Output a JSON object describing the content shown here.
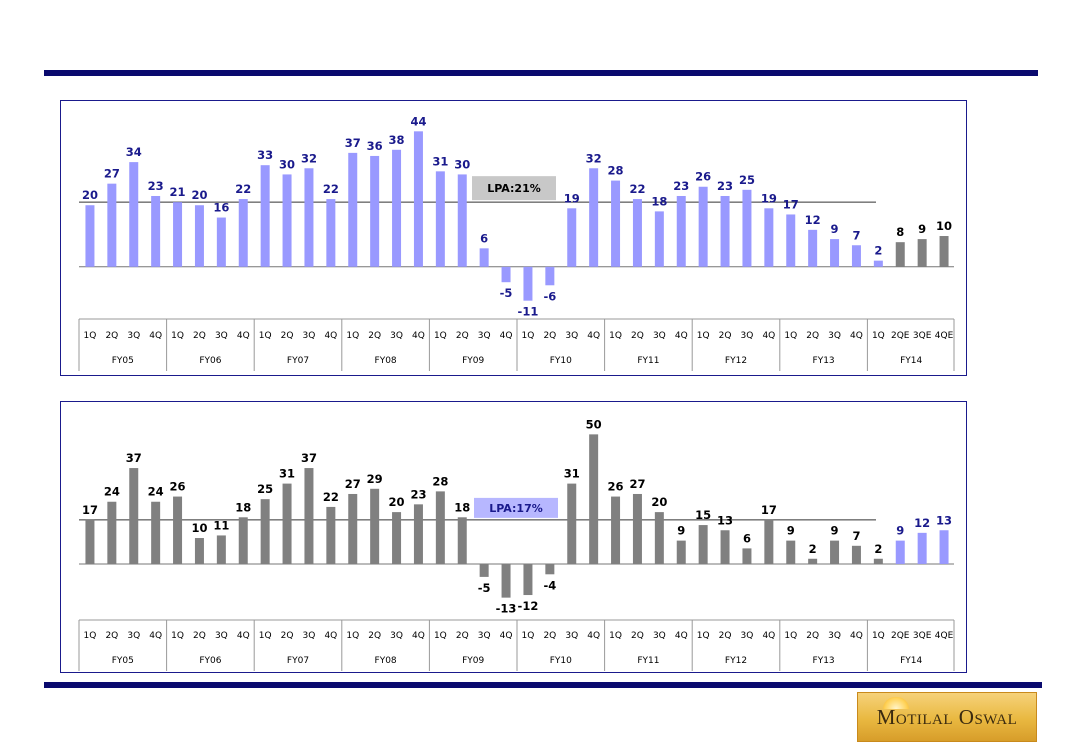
{
  "colors": {
    "rule": "#0a0a6e",
    "border": "#1a1a8c",
    "purple_bar": "#9999ff",
    "grey_bar": "#808080",
    "purple_text": "#1a1a8c",
    "black_text": "#000000",
    "lpa_grey_bg": "#c8c8c8",
    "lpa_purple_bg": "#b7b7ff"
  },
  "logo": {
    "text": "Motilal Oswal",
    "icon": "rising-sun-icon"
  },
  "chart_data": [
    {
      "type": "bar",
      "title": "",
      "xlabel": "",
      "ylabel": "",
      "categories": [
        "1Q",
        "2Q",
        "3Q",
        "4Q",
        "1Q",
        "2Q",
        "3Q",
        "4Q",
        "1Q",
        "2Q",
        "3Q",
        "4Q",
        "1Q",
        "2Q",
        "3Q",
        "4Q",
        "1Q",
        "2Q",
        "3Q",
        "4Q",
        "1Q",
        "2Q",
        "3Q",
        "4Q",
        "1Q",
        "2Q",
        "3Q",
        "4Q",
        "1Q",
        "2Q",
        "3Q",
        "4Q",
        "1Q",
        "2Q",
        "3Q",
        "4Q",
        "1Q",
        "2QE",
        "3QE",
        "4QE"
      ],
      "groups": [
        "FY05",
        "FY06",
        "FY07",
        "FY08",
        "FY09",
        "FY10",
        "FY11",
        "FY12",
        "FY13",
        "FY14"
      ],
      "values": [
        20,
        27,
        34,
        23,
        21,
        20,
        16,
        22,
        33,
        30,
        32,
        22,
        37,
        36,
        38,
        44,
        31,
        30,
        6,
        -5,
        -11,
        -6,
        19,
        32,
        28,
        22,
        18,
        23,
        26,
        23,
        25,
        19,
        17,
        12,
        9,
        7,
        2,
        8,
        9,
        10
      ],
      "highlight_from_index": 37,
      "base_color": "#9999ff",
      "highlight_color": "#808080",
      "label_color": "#1a1a8c",
      "highlight_label_color": "#000000",
      "ylim": [
        -15,
        48
      ],
      "reference_line": {
        "value": 21,
        "label": "LPA:21%"
      },
      "lpa_box_color": "#c8c8c8",
      "lpa_text_color": "#000000"
    },
    {
      "type": "bar",
      "title": "",
      "xlabel": "",
      "ylabel": "",
      "categories": [
        "1Q",
        "2Q",
        "3Q",
        "4Q",
        "1Q",
        "2Q",
        "3Q",
        "4Q",
        "1Q",
        "2Q",
        "3Q",
        "4Q",
        "1Q",
        "2Q",
        "3Q",
        "4Q",
        "1Q",
        "2Q",
        "3Q",
        "4Q",
        "1Q",
        "2Q",
        "3Q",
        "4Q",
        "1Q",
        "2Q",
        "3Q",
        "4Q",
        "1Q",
        "2Q",
        "3Q",
        "4Q",
        "1Q",
        "2Q",
        "3Q",
        "4Q",
        "1Q",
        "2QE",
        "3QE",
        "4QE"
      ],
      "groups": [
        "FY05",
        "FY06",
        "FY07",
        "FY08",
        "FY09",
        "FY10",
        "FY11",
        "FY12",
        "FY13",
        "FY14"
      ],
      "values": [
        17,
        24,
        37,
        24,
        26,
        10,
        11,
        18,
        25,
        31,
        37,
        22,
        27,
        29,
        20,
        23,
        28,
        18,
        -5,
        -13,
        -12,
        -4,
        31,
        50,
        26,
        27,
        20,
        9,
        15,
        13,
        6,
        17,
        9,
        2,
        9,
        7,
        2,
        9,
        12,
        13
      ],
      "highlight_from_index": 37,
      "base_color": "#808080",
      "highlight_color": "#9999ff",
      "label_color": "#000000",
      "highlight_label_color": "#1a1a8c",
      "ylim": [
        -17,
        54
      ],
      "reference_line": {
        "value": 17,
        "label": "LPA:17%"
      },
      "lpa_box_color": "#b7b7ff",
      "lpa_text_color": "#1a1a8c"
    }
  ]
}
